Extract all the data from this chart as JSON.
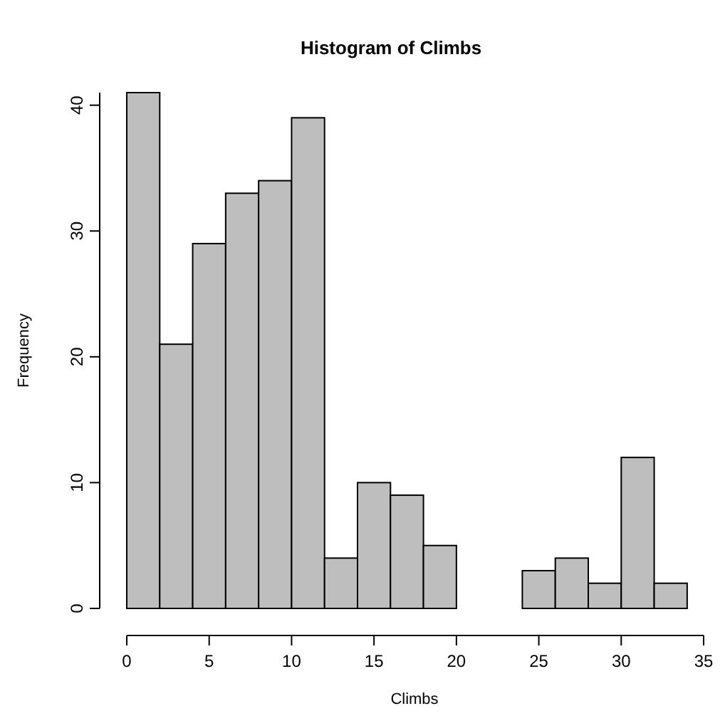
{
  "chart_data": {
    "type": "histogram",
    "title": "Histogram of Climbs",
    "xlabel": "Climbs",
    "ylabel": "Frequency",
    "bins": [
      0,
      2,
      4,
      6,
      8,
      10,
      12,
      14,
      16,
      18,
      20,
      22,
      24,
      26,
      28,
      30,
      32,
      34
    ],
    "values": [
      41,
      21,
      29,
      33,
      34,
      39,
      4,
      10,
      9,
      5,
      0,
      0,
      3,
      4,
      2,
      12,
      2
    ],
    "color": "#bebebe",
    "xlim": [
      0,
      35
    ],
    "ylim": [
      0,
      41
    ],
    "xticks": [
      0,
      5,
      10,
      15,
      20,
      25,
      30,
      35
    ],
    "yticks": [
      0,
      10,
      20,
      30,
      40
    ]
  }
}
